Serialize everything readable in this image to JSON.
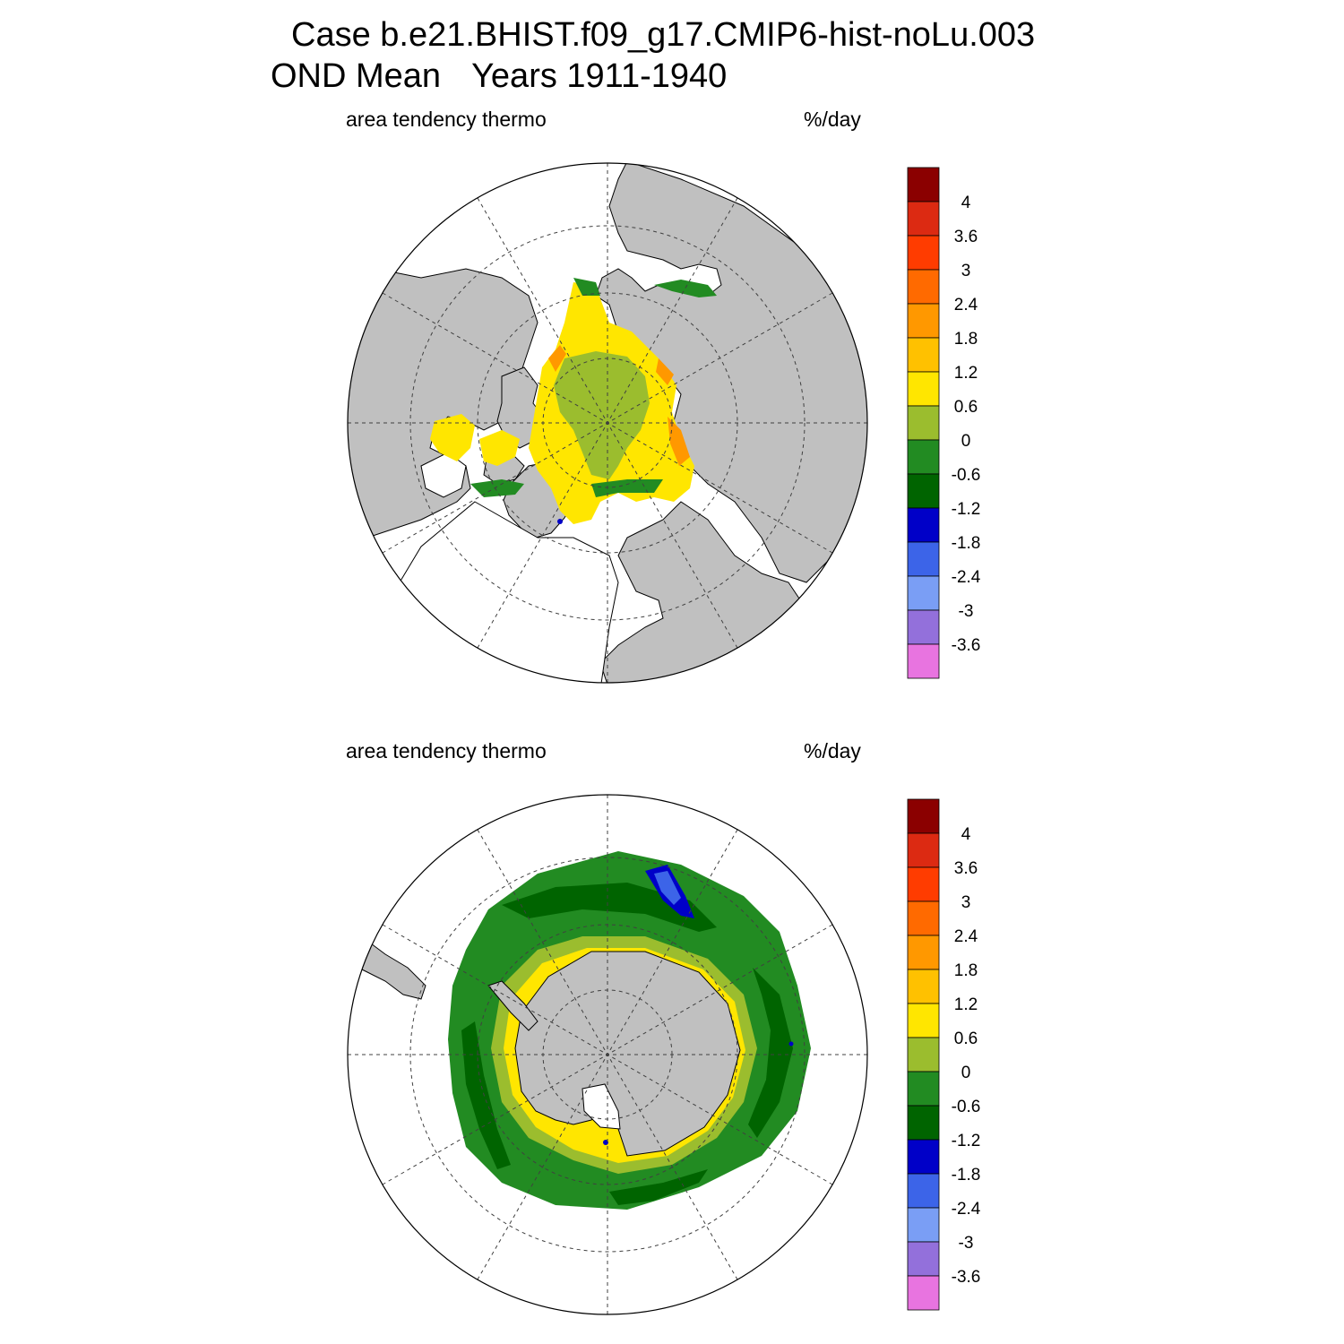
{
  "title": {
    "case": "Case b.e21.BHIST.f09_g17.CMIP6-hist-noLu.003",
    "season": "OND Mean",
    "years": "Years 1911-1940"
  },
  "panels": [
    {
      "id": "north",
      "hemisphere": "north",
      "left_label": "area tendency thermo",
      "right_label": "%/day"
    },
    {
      "id": "south",
      "hemisphere": "south",
      "left_label": "area tendency thermo",
      "right_label": "%/day"
    }
  ],
  "colorbar": {
    "units": "%/day",
    "levels": [
      "4",
      "3.6",
      "3",
      "2.4",
      "1.8",
      "1.2",
      "0.6",
      "0",
      "-0.6",
      "-1.2",
      "-1.8",
      "-2.4",
      "-3",
      "-3.6"
    ],
    "colors": [
      "#8b0000",
      "#dc2a12",
      "#ff3c00",
      "#ff6a00",
      "#ff9800",
      "#ffc100",
      "#ffe600",
      "#9bbd2e",
      "#228b22",
      "#006400",
      "#0000c8",
      "#3c64e8",
      "#7a9ef5",
      "#9370db",
      "#e874e0"
    ]
  },
  "colors": {
    "land": "#c0c0c0",
    "ocean": "#ffffff",
    "grid": "#404040"
  }
}
